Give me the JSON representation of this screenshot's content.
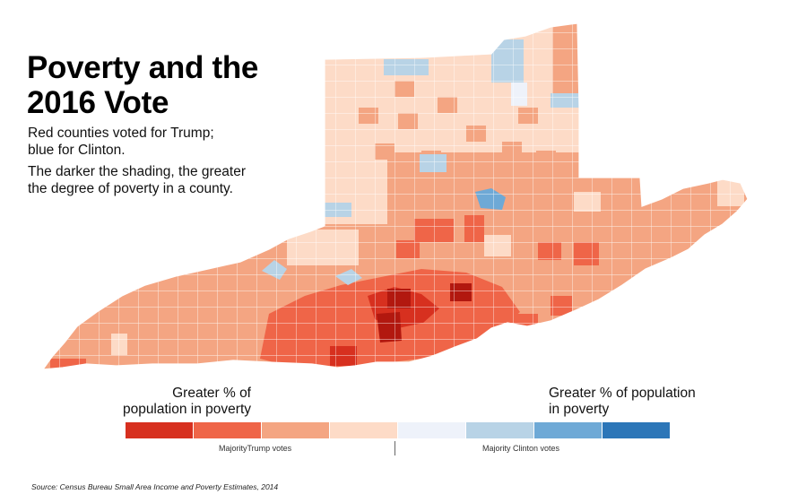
{
  "title_line1": "Poverty and the",
  "title_line2": "2016 Vote",
  "subtitle_line1": "Red counties voted for Trump;",
  "subtitle_line2": "blue for Clinton.",
  "description_line1": "The darker the shading, the greater",
  "description_line2": "the degree of poverty in a county.",
  "legend": {
    "left_heading_line1": "Greater % of",
    "left_heading_line2": "population in poverty",
    "right_heading_line1": "Greater % of population",
    "right_heading_line2": "in poverty",
    "trump_label": "MajorityTrump votes",
    "clinton_label": "Majority Clinton votes",
    "scale_colors": [
      "#d7301f",
      "#ef6548",
      "#f4a582",
      "#fddbc7",
      "#eef2fa",
      "#b8d3e6",
      "#6ea9d6",
      "#2c76b8"
    ]
  },
  "colors": {
    "darkest_red": "#b2180f",
    "dark_red": "#d7301f",
    "red": "#ef6548",
    "medium_red": "#f4a582",
    "light_red": "#fddbc7",
    "light_blue": "#b8d3e6",
    "medium_blue": "#6ea9d6",
    "county_border": "#ffffff"
  },
  "source": "Source:  Census Bureau Small Area Income and Poverty Estimates, 2014"
}
